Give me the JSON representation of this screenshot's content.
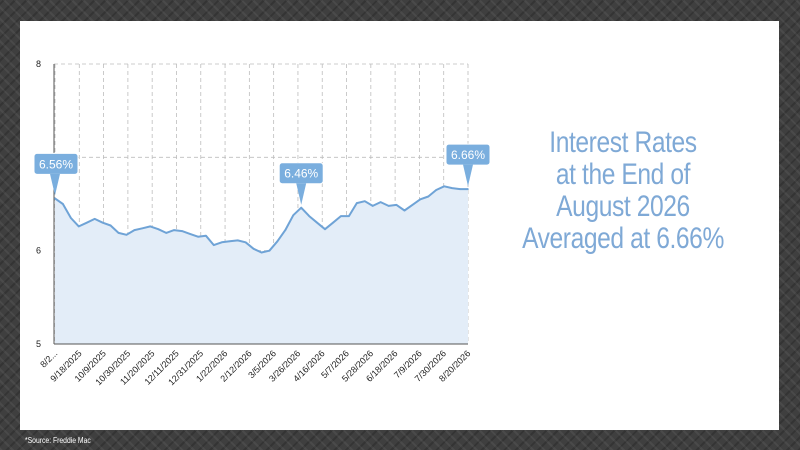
{
  "headline": {
    "lines": [
      "Interest Rates",
      "at the End of",
      "August 2026",
      "Averaged at 6.66%"
    ]
  },
  "source": "*Source: Freddie Mac",
  "colors": {
    "line": "#6fa3d6",
    "fill": "#e3edf8",
    "callout": "#7aaede",
    "headline": "#7fa9d6",
    "grid": "#bdbdbd"
  },
  "chart_data": {
    "type": "area",
    "ylim": [
      5,
      8
    ],
    "yticks": [
      "5",
      "6",
      "7",
      "8"
    ],
    "xtick_labels": [
      "8/2...",
      "9/18/2025",
      "10/9/2025",
      "10/30/2025",
      "11/20/2025",
      "12/11/2025",
      "12/31/2025",
      "1/22/2026",
      "2/12/2026",
      "3/5/2026",
      "3/26/2026",
      "4/16/2026",
      "5/7/2026",
      "5/28/2026",
      "6/18/2026",
      "7/9/2026",
      "7/30/2026",
      "8/20/2026"
    ],
    "grid": true,
    "values": [
      6.56,
      6.5,
      6.35,
      6.26,
      6.3,
      6.34,
      6.3,
      6.27,
      6.19,
      6.17,
      6.22,
      6.24,
      6.26,
      6.23,
      6.19,
      6.22,
      6.21,
      6.18,
      6.15,
      6.16,
      6.06,
      6.09,
      6.1,
      6.11,
      6.09,
      6.02,
      5.98,
      6.0,
      6.1,
      6.22,
      6.38,
      6.46,
      6.37,
      6.3,
      6.23,
      6.3,
      6.37,
      6.37,
      6.51,
      6.53,
      6.48,
      6.52,
      6.48,
      6.49,
      6.43,
      6.49,
      6.55,
      6.58,
      6.65,
      6.69,
      6.67,
      6.66,
      6.66
    ],
    "callouts": [
      {
        "index": 0,
        "label": "6.56%"
      },
      {
        "index": 31,
        "label": "6.46%"
      },
      {
        "index": 52,
        "label": "6.66%"
      }
    ]
  }
}
